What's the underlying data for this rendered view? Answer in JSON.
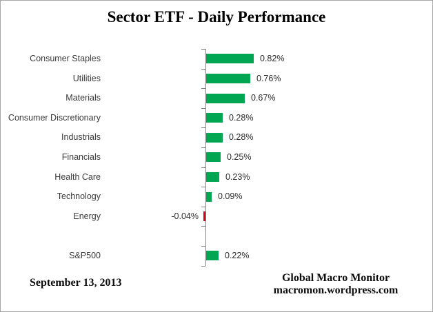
{
  "title": "Sector ETF - Daily Performance",
  "footer": {
    "date": "September 13, 2013",
    "source_line1": "Global Macro Monitor",
    "source_line2": "macromon.wordpress.com"
  },
  "colors": {
    "positive_bar": "#00a651",
    "negative_bar": "#e00019",
    "axis": "#808080"
  },
  "chart_data": {
    "type": "bar",
    "orientation": "horizontal",
    "title": "Sector ETF - Daily Performance",
    "categories": [
      "Consumer Staples",
      "Utilities",
      "Materials",
      "Consumer Discretionary",
      "Industrials",
      "Financials",
      "Health Care",
      "Technology",
      "Energy",
      "",
      "S&P500"
    ],
    "values": [
      0.82,
      0.76,
      0.67,
      0.28,
      0.28,
      0.25,
      0.23,
      0.09,
      -0.04,
      null,
      0.22
    ],
    "data_labels": [
      "0.82%",
      "0.76%",
      "0.67%",
      "0.28%",
      "0.28%",
      "0.25%",
      "0.23%",
      "0.09%",
      "-0.04%",
      "",
      "0.22%"
    ],
    "unit": "%",
    "xlabel": "",
    "ylabel": "",
    "grid": false,
    "legend": false,
    "baseline": 0
  }
}
